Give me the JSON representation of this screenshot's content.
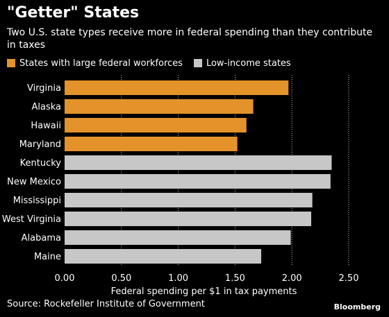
{
  "title": "\"Getter\" States",
  "subtitle": "Two U.S. state types receive more in federal spending than they contribute in taxes",
  "source": "Source: Rockefeller Institute of Government",
  "logo": "Bloomberg",
  "colors": {
    "background": "#000000",
    "orange": "#e4932b",
    "gray": "#c7c7c7",
    "grid": "#ffffff"
  },
  "chart_data": {
    "type": "bar",
    "orientation": "horizontal",
    "categories": [
      "Virginia",
      "Alaska",
      "Hawaii",
      "Maryland",
      "Kentucky",
      "New Mexico",
      "Mississippi",
      "West Virginia",
      "Alabama",
      "Maine"
    ],
    "values": [
      1.97,
      1.66,
      1.6,
      1.52,
      2.35,
      2.34,
      2.18,
      2.17,
      1.99,
      1.73
    ],
    "groups": [
      "States with large federal workforces",
      "States with large federal workforces",
      "States with large federal workforces",
      "States with large federal workforces",
      "Low-income states",
      "Low-income states",
      "Low-income states",
      "Low-income states",
      "Low-income states",
      "Low-income states"
    ],
    "legend": [
      "States with large federal workforces",
      "Low-income states"
    ],
    "xticks": [
      "0.00",
      "0.50",
      "1.00",
      "1.50",
      "2.00",
      "2.50"
    ],
    "xlim": [
      0,
      2.5
    ],
    "xlabel": "Federal spending per $1 in tax payments",
    "ylabel": "",
    "grid": "vertical dotted",
    "legend_position": "top-left"
  }
}
